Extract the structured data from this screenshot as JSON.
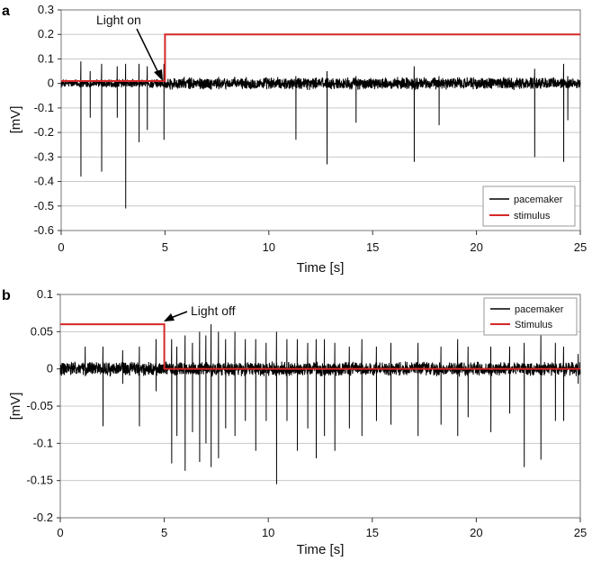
{
  "chart_data": [
    {
      "panel": "a",
      "type": "line",
      "title": "",
      "xlabel": "Time [s]",
      "ylabel": "[mV]",
      "xlim": [
        0,
        25
      ],
      "ylim": [
        -0.6,
        0.3
      ],
      "xticks": [
        0,
        5,
        10,
        15,
        20,
        25
      ],
      "yticks": [
        -0.6,
        -0.5,
        -0.4,
        -0.3,
        -0.2,
        -0.1,
        0,
        0.1,
        0.2,
        0.3
      ],
      "ytick_labels": [
        "-0.6",
        "-0.5",
        "-0.4",
        "-0.3",
        "-0.2",
        "-0.1",
        "0",
        "0.1",
        "0.2",
        "0.3"
      ],
      "grid": "horizontal",
      "legend": {
        "position": "bottom-right",
        "entries": [
          "pacemaker",
          "stimulus"
        ]
      },
      "annotation": {
        "text": "Light on",
        "x": 5,
        "y": 0.01
      },
      "series": [
        {
          "name": "pacemaker",
          "color": "#000000",
          "baseline_noise": 0.015,
          "spikes": [
            {
              "t": 0.95,
              "neg": -0.38,
              "pos": 0.09
            },
            {
              "t": 1.4,
              "neg": -0.14,
              "pos": 0.05
            },
            {
              "t": 1.95,
              "neg": -0.36,
              "pos": 0.08
            },
            {
              "t": 2.7,
              "neg": -0.14,
              "pos": 0.07
            },
            {
              "t": 3.1,
              "neg": -0.51,
              "pos": 0.08
            },
            {
              "t": 3.75,
              "neg": -0.24,
              "pos": 0.08
            },
            {
              "t": 4.15,
              "neg": -0.19,
              "pos": 0.07
            },
            {
              "t": 4.95,
              "neg": -0.23,
              "pos": 0.08
            },
            {
              "t": 11.3,
              "neg": -0.23,
              "pos": 0.03
            },
            {
              "t": 12.8,
              "neg": -0.33,
              "pos": 0.05
            },
            {
              "t": 14.2,
              "neg": -0.16,
              "pos": 0.03
            },
            {
              "t": 17.0,
              "neg": -0.32,
              "pos": 0.07
            },
            {
              "t": 18.2,
              "neg": -0.17,
              "pos": 0.03
            },
            {
              "t": 22.8,
              "neg": -0.3,
              "pos": 0.06
            },
            {
              "t": 24.2,
              "neg": -0.32,
              "pos": 0.08
            },
            {
              "t": 24.4,
              "neg": -0.15,
              "pos": 0.03
            }
          ]
        },
        {
          "name": "stimulus",
          "color": "#d62728",
          "x": [
            0,
            5,
            5,
            25
          ],
          "y": [
            0.01,
            0.01,
            0.2,
            0.2
          ]
        }
      ]
    },
    {
      "panel": "b",
      "type": "line",
      "title": "",
      "xlabel": "Time [s]",
      "ylabel": "[mV]",
      "xlim": [
        0,
        25
      ],
      "ylim": [
        -0.2,
        0.1
      ],
      "xticks": [
        0,
        5,
        10,
        15,
        20,
        25
      ],
      "yticks": [
        -0.2,
        -0.15,
        -0.1,
        -0.05,
        0,
        0.05,
        0.1
      ],
      "ytick_labels": [
        "-0.2",
        "-0.15",
        "-0.1",
        "-0.05",
        "0",
        "0.05",
        "0.1"
      ],
      "grid": "horizontal",
      "legend": {
        "position": "top-right",
        "entries": [
          "pacemaker",
          "Stimulus"
        ]
      },
      "annotation": {
        "text": "Light off",
        "x": 5,
        "y": 0.06
      },
      "series": [
        {
          "name": "pacemaker",
          "color": "#000000",
          "baseline_noise": 0.008,
          "spikes": [
            {
              "t": 1.2,
              "neg": -0.01,
              "pos": 0.03
            },
            {
              "t": 2.05,
              "neg": -0.077,
              "pos": 0.03
            },
            {
              "t": 3.0,
              "neg": -0.02,
              "pos": 0.025
            },
            {
              "t": 3.8,
              "neg": -0.077,
              "pos": 0.03
            },
            {
              "t": 4.6,
              "neg": -0.03,
              "pos": 0.04
            },
            {
              "t": 5.35,
              "neg": -0.127,
              "pos": 0.04
            },
            {
              "t": 5.6,
              "neg": -0.09,
              "pos": 0.03
            },
            {
              "t": 6.0,
              "neg": -0.137,
              "pos": 0.045
            },
            {
              "t": 6.35,
              "neg": -0.085,
              "pos": 0.035
            },
            {
              "t": 6.7,
              "neg": -0.125,
              "pos": 0.05
            },
            {
              "t": 7.0,
              "neg": -0.1,
              "pos": 0.045
            },
            {
              "t": 7.25,
              "neg": -0.132,
              "pos": 0.06
            },
            {
              "t": 7.6,
              "neg": -0.12,
              "pos": 0.05
            },
            {
              "t": 7.95,
              "neg": -0.08,
              "pos": 0.04
            },
            {
              "t": 8.4,
              "neg": -0.09,
              "pos": 0.05
            },
            {
              "t": 8.9,
              "neg": -0.07,
              "pos": 0.04
            },
            {
              "t": 9.4,
              "neg": -0.11,
              "pos": 0.04
            },
            {
              "t": 9.9,
              "neg": -0.07,
              "pos": 0.035
            },
            {
              "t": 10.4,
              "neg": -0.155,
              "pos": 0.05
            },
            {
              "t": 10.9,
              "neg": -0.07,
              "pos": 0.04
            },
            {
              "t": 11.4,
              "neg": -0.11,
              "pos": 0.04
            },
            {
              "t": 11.9,
              "neg": -0.08,
              "pos": 0.035
            },
            {
              "t": 12.3,
              "neg": -0.12,
              "pos": 0.04
            },
            {
              "t": 12.7,
              "neg": -0.09,
              "pos": 0.04
            },
            {
              "t": 13.2,
              "neg": -0.11,
              "pos": 0.035
            },
            {
              "t": 13.9,
              "neg": -0.08,
              "pos": 0.03
            },
            {
              "t": 14.5,
              "neg": -0.09,
              "pos": 0.04
            },
            {
              "t": 15.2,
              "neg": -0.07,
              "pos": 0.03
            },
            {
              "t": 15.9,
              "neg": -0.075,
              "pos": 0.035
            },
            {
              "t": 17.2,
              "neg": -0.09,
              "pos": 0.035
            },
            {
              "t": 18.3,
              "neg": -0.075,
              "pos": 0.03
            },
            {
              "t": 19.1,
              "neg": -0.09,
              "pos": 0.04
            },
            {
              "t": 19.6,
              "neg": -0.065,
              "pos": 0.03
            },
            {
              "t": 20.7,
              "neg": -0.085,
              "pos": 0.03
            },
            {
              "t": 21.6,
              "neg": -0.06,
              "pos": 0.03
            },
            {
              "t": 22.3,
              "neg": -0.132,
              "pos": 0.035
            },
            {
              "t": 23.1,
              "neg": -0.122,
              "pos": 0.045
            },
            {
              "t": 23.8,
              "neg": -0.07,
              "pos": 0.035
            },
            {
              "t": 24.2,
              "neg": -0.07,
              "pos": 0.03
            },
            {
              "t": 24.9,
              "neg": -0.02,
              "pos": 0.02
            }
          ]
        },
        {
          "name": "Stimulus",
          "color": "#d62728",
          "x": [
            0,
            5,
            5,
            25
          ],
          "y": [
            0.06,
            0.06,
            0.0,
            0.0
          ]
        }
      ]
    }
  ]
}
